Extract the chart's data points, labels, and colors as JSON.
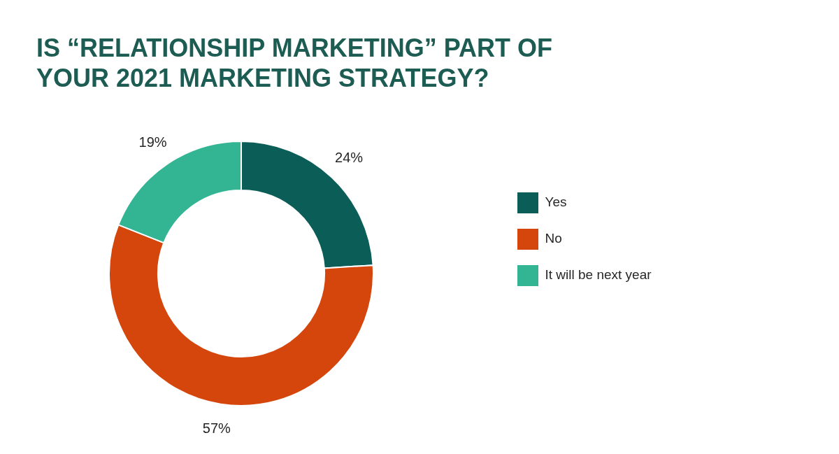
{
  "chart_data": {
    "type": "donut",
    "title": "IS “RELATIONSHIP MARKETING” PART OF YOUR 2021 MARKETING STRATEGY?",
    "categories": [
      "Yes",
      "No",
      "It will be next year"
    ],
    "values": [
      24,
      57,
      19
    ],
    "colors": [
      "#0b5e57",
      "#d5460d",
      "#33b594"
    ],
    "value_labels": [
      "24%",
      "57%",
      "19%"
    ],
    "legend": "right"
  }
}
